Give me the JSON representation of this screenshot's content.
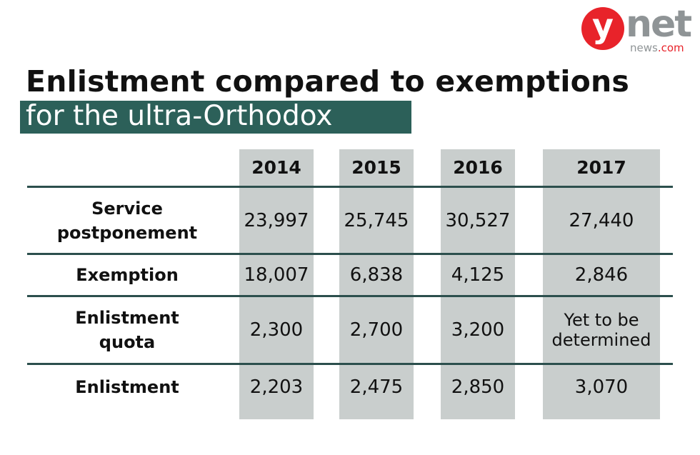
{
  "logo": {
    "letter": "y",
    "word": "net",
    "sub_main": "news",
    "sub_domain": ".com"
  },
  "title": "Enlistment compared to exemptions",
  "subtitle": "for the ultra-Orthodox",
  "colors": {
    "accent": "#2c6059",
    "column_bg": "#c9cecd",
    "logo_red": "#e8232a",
    "logo_gray": "#8f9496"
  },
  "table": {
    "columns": [
      "2014",
      "2015",
      "2016",
      "2017"
    ],
    "rows": [
      {
        "label": "Service postponement",
        "values": [
          "23,997",
          "25,745",
          "30,527",
          "27,440"
        ]
      },
      {
        "label": "Exemption",
        "values": [
          "18,007",
          "6,838",
          "4,125",
          "2,846"
        ]
      },
      {
        "label": "Enlistment quota",
        "values": [
          "2,300",
          "2,700",
          "3,200",
          "Yet to be determined"
        ]
      },
      {
        "label": "Enlistment",
        "values": [
          "2,203",
          "2,475",
          "2,850",
          "3,070"
        ]
      }
    ]
  }
}
